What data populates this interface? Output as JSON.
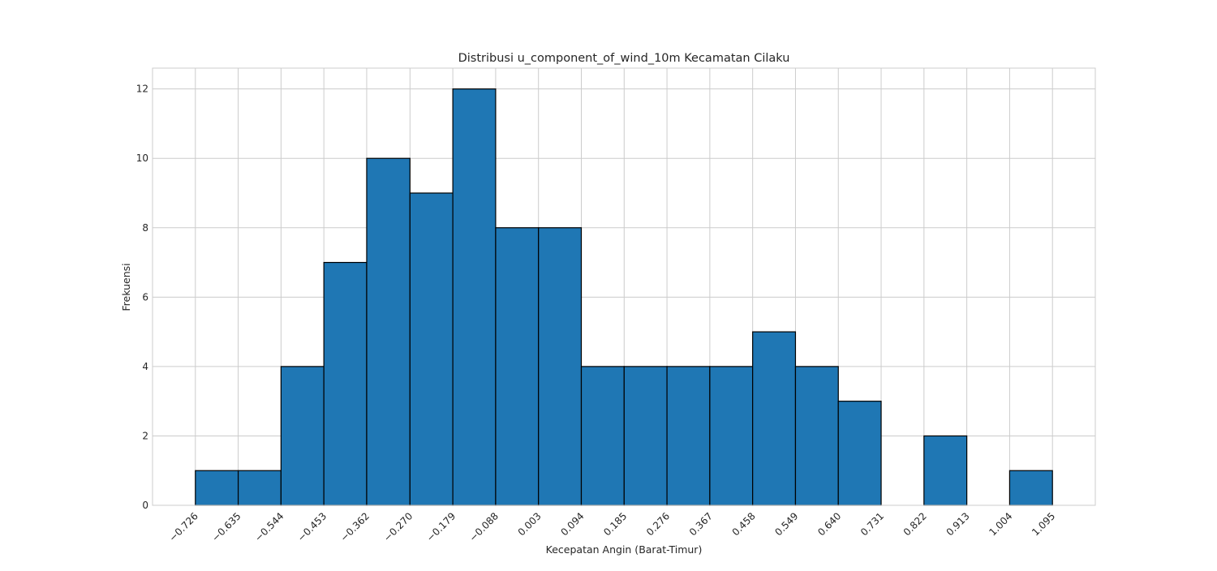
{
  "chart_data": {
    "type": "bar",
    "title": "Distribusi u_component_of_wind_10m Kecamatan Cilaku",
    "xlabel": "Kecepatan Angin (Barat-Timur)",
    "ylabel": "Frekuensi",
    "bin_edges": [
      -0.726,
      -0.635,
      -0.544,
      -0.453,
      -0.362,
      -0.27,
      -0.179,
      -0.088,
      0.003,
      0.094,
      0.185,
      0.276,
      0.367,
      0.458,
      0.549,
      0.64,
      0.731,
      0.822,
      0.913,
      1.004,
      1.095
    ],
    "x_tick_labels": [
      "−0.726",
      "−0.635",
      "−0.544",
      "−0.453",
      "−0.362",
      "−0.270",
      "−0.179",
      "−0.088",
      "0.003",
      "0.094",
      "0.185",
      "0.276",
      "0.367",
      "0.458",
      "0.549",
      "0.640",
      "0.731",
      "0.822",
      "0.913",
      "1.004",
      "1.095"
    ],
    "values": [
      1,
      1,
      4,
      7,
      10,
      9,
      12,
      8,
      8,
      4,
      4,
      4,
      4,
      5,
      4,
      3,
      0,
      2,
      0,
      1
    ],
    "y_ticks": [
      0,
      2,
      4,
      6,
      8,
      10,
      12
    ],
    "ylim": [
      0,
      12.6
    ],
    "xlim": [
      -0.817,
      1.186
    ],
    "grid": true,
    "colors": {
      "bar_fill": "#1f77b4",
      "bar_edge": "#000000",
      "grid": "#cccccc",
      "frame": "#cccccc",
      "text": "#262626"
    }
  }
}
